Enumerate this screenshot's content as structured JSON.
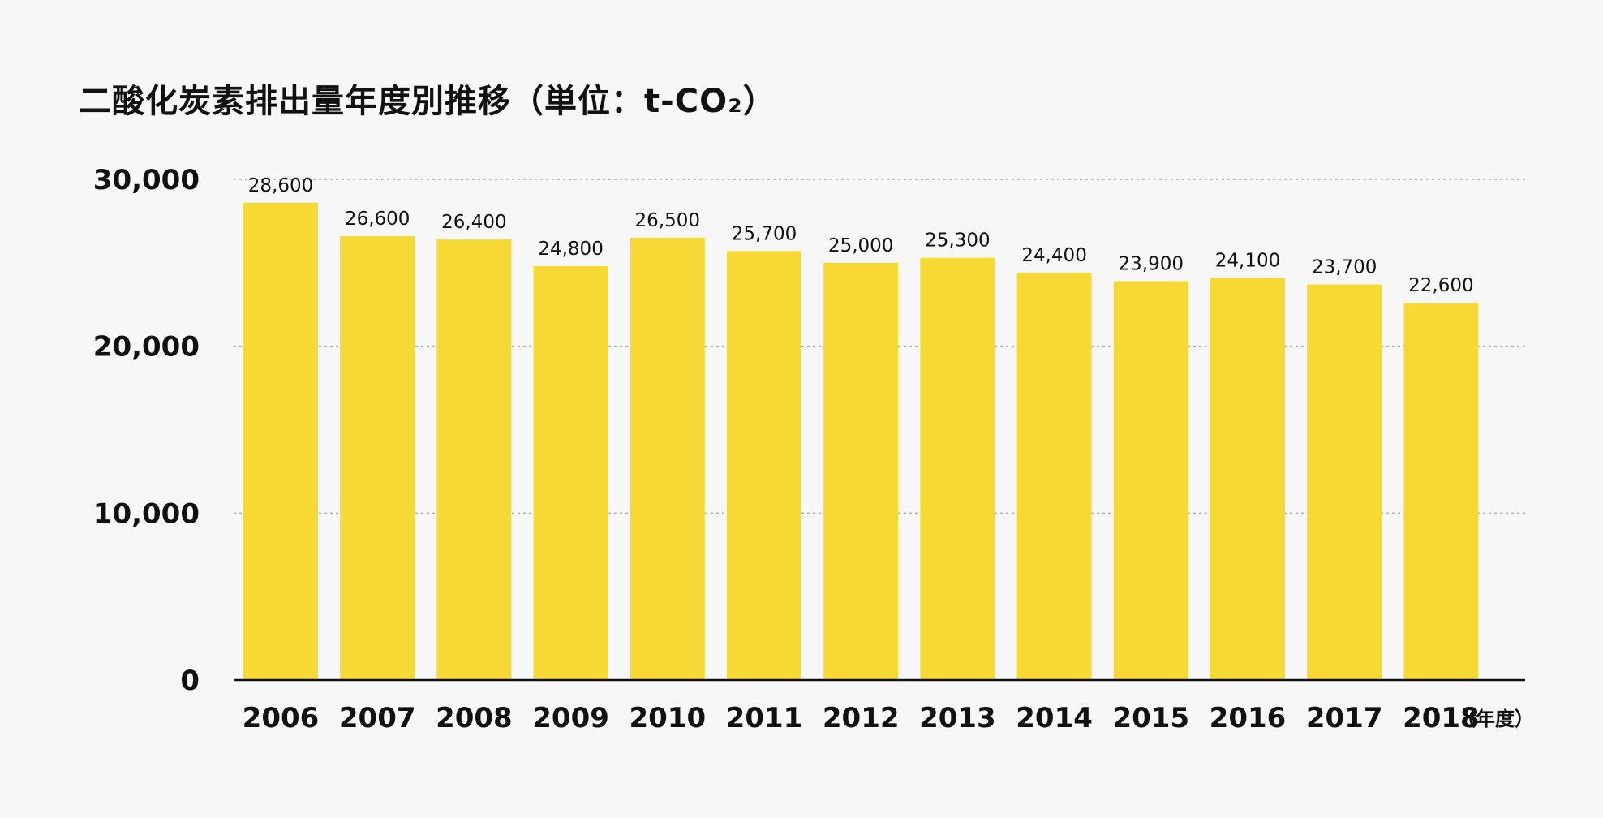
{
  "chart_data": {
    "type": "bar",
    "title": "二酸化炭素排出量年度別推移（単位：t-CO₂）",
    "xlabel": "（年度）",
    "ylabel": "",
    "categories": [
      "2006",
      "2007",
      "2008",
      "2009",
      "2010",
      "2011",
      "2012",
      "2013",
      "2014",
      "2015",
      "2016",
      "2017",
      "2018"
    ],
    "values": [
      28600,
      26600,
      26400,
      24800,
      26500,
      25700,
      25000,
      25300,
      24400,
      23900,
      24100,
      23700,
      22600
    ],
    "data_labels": [
      "28,600",
      "26,600",
      "26,400",
      "24,800",
      "26,500",
      "25,700",
      "25,000",
      "25,300",
      "24,400",
      "23,900",
      "24,100",
      "23,700",
      "22,600"
    ],
    "ylim": [
      0,
      30000
    ],
    "yticks": [
      0,
      10000,
      20000,
      30000
    ],
    "ytick_labels": [
      "0",
      "10,000",
      "20,000",
      "30,000"
    ],
    "grid": "horizontal dotted",
    "legend": "none",
    "colors": {
      "bar": "#f7d935",
      "axis": "#111111",
      "grid": "#aaaaaa",
      "background": "#f7f7f7"
    }
  }
}
